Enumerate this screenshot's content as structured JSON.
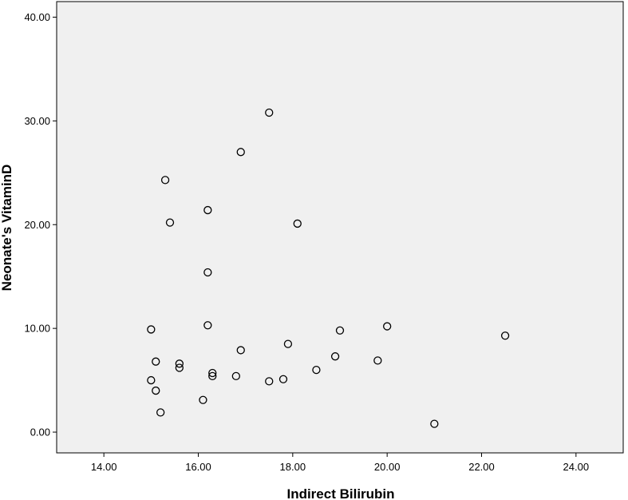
{
  "chart_data": {
    "type": "scatter",
    "title": "",
    "xlabel": "Indirect Bilirubin",
    "ylabel": "Neonate's VitaminD",
    "xlim": [
      13.0,
      25.0
    ],
    "ylim": [
      -2.0,
      41.5
    ],
    "xticks": [
      14,
      16,
      18,
      20,
      22,
      24
    ],
    "yticks": [
      0,
      10,
      20,
      30,
      40
    ],
    "xtick_labels": [
      "14.00",
      "16.00",
      "18.00",
      "20.00",
      "22.00",
      "24.00"
    ],
    "ytick_labels": [
      "0.00",
      "10.00",
      "20.00",
      "30.00",
      "40.00"
    ],
    "grid": false,
    "colors": {
      "background": "#f0f0f0",
      "marker_stroke": "#000000",
      "axis": "#000000"
    },
    "points": [
      {
        "x": 17.5,
        "y": 30.8
      },
      {
        "x": 16.9,
        "y": 27.0
      },
      {
        "x": 15.3,
        "y": 24.3
      },
      {
        "x": 16.2,
        "y": 21.4
      },
      {
        "x": 15.4,
        "y": 20.2
      },
      {
        "x": 18.1,
        "y": 20.1
      },
      {
        "x": 16.2,
        "y": 15.4
      },
      {
        "x": 16.2,
        "y": 10.3
      },
      {
        "x": 15.0,
        "y": 9.9
      },
      {
        "x": 19.0,
        "y": 9.8
      },
      {
        "x": 20.0,
        "y": 10.2
      },
      {
        "x": 22.5,
        "y": 9.3
      },
      {
        "x": 17.9,
        "y": 8.5
      },
      {
        "x": 16.9,
        "y": 7.9
      },
      {
        "x": 18.9,
        "y": 7.3
      },
      {
        "x": 19.8,
        "y": 6.9
      },
      {
        "x": 15.1,
        "y": 6.8
      },
      {
        "x": 15.6,
        "y": 6.6
      },
      {
        "x": 15.6,
        "y": 6.2
      },
      {
        "x": 18.5,
        "y": 6.0
      },
      {
        "x": 16.3,
        "y": 5.7
      },
      {
        "x": 16.3,
        "y": 5.4
      },
      {
        "x": 16.8,
        "y": 5.4
      },
      {
        "x": 17.8,
        "y": 5.1
      },
      {
        "x": 15.0,
        "y": 5.0
      },
      {
        "x": 17.5,
        "y": 4.9
      },
      {
        "x": 15.1,
        "y": 4.0
      },
      {
        "x": 16.1,
        "y": 3.1
      },
      {
        "x": 15.2,
        "y": 1.9
      },
      {
        "x": 21.0,
        "y": 0.8
      }
    ]
  }
}
